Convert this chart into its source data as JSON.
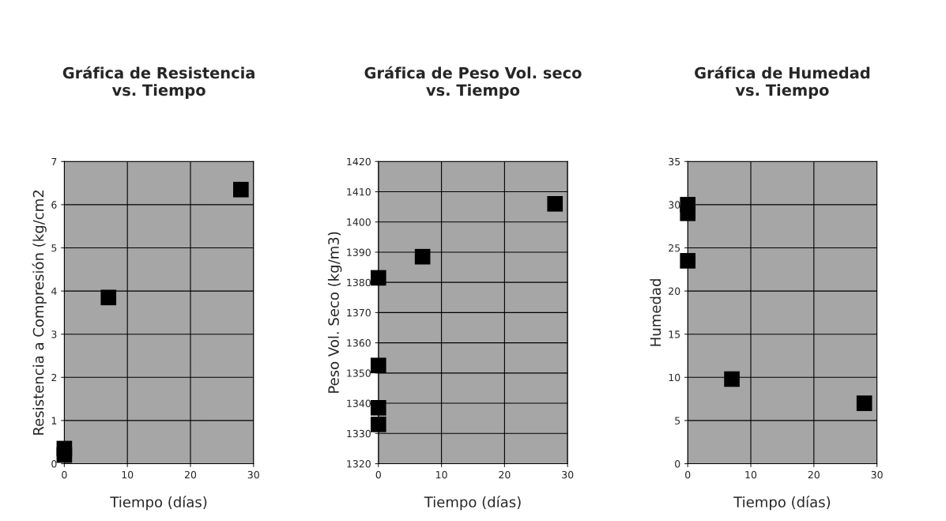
{
  "chart_data": [
    {
      "type": "scatter",
      "title": "Gráfica de Resistencia\nvs. Tiempo",
      "xlabel": "Tiempo (días)",
      "ylabel": "Resistencia a Compresión (kg/cm2",
      "x": [
        0,
        0,
        7,
        28
      ],
      "series": [
        {
          "color": "#000000",
          "values": [
            0.35,
            0.2,
            3.85,
            6.35
          ]
        }
      ],
      "xlim": [
        0,
        30
      ],
      "xticks": [
        0,
        10,
        20,
        30
      ],
      "ylim": [
        0,
        7
      ],
      "yticks": [
        0,
        1,
        2,
        3,
        4,
        5,
        6,
        7
      ],
      "grid": true,
      "marker": "square"
    },
    {
      "type": "scatter",
      "title": "Gráfica de Peso Vol. seco\nvs. Tiempo",
      "xlabel": "Tiempo (días)",
      "ylabel": "Peso Vol. Seco (kg/m3)",
      "x": [
        0,
        0,
        0,
        0,
        7,
        28
      ],
      "series": [
        {
          "color": "#000000",
          "values": [
            1381.5,
            1352.5,
            1338.5,
            1333,
            1388.5,
            1406
          ]
        }
      ],
      "xlim": [
        0,
        30
      ],
      "xticks": [
        0,
        10,
        20,
        30
      ],
      "ylim": [
        1320,
        1420
      ],
      "yticks": [
        1320,
        1330,
        1340,
        1350,
        1360,
        1370,
        1380,
        1390,
        1400,
        1410,
        1420
      ],
      "grid": true,
      "marker": "square"
    },
    {
      "type": "scatter",
      "title": "Gráfica de Humedad\nvs. Tiempo",
      "xlabel": "Tiempo (días)",
      "ylabel": "Humedad",
      "x": [
        0,
        0,
        0,
        7,
        28
      ],
      "series": [
        {
          "color": "#000000",
          "values": [
            30,
            29,
            23.5,
            9.8,
            7
          ]
        }
      ],
      "xlim": [
        0,
        30
      ],
      "xticks": [
        0,
        10,
        20,
        30
      ],
      "ylim": [
        0,
        35
      ],
      "yticks": [
        0,
        5,
        10,
        15,
        20,
        25,
        30,
        35
      ],
      "grid": true,
      "marker": "square"
    }
  ]
}
